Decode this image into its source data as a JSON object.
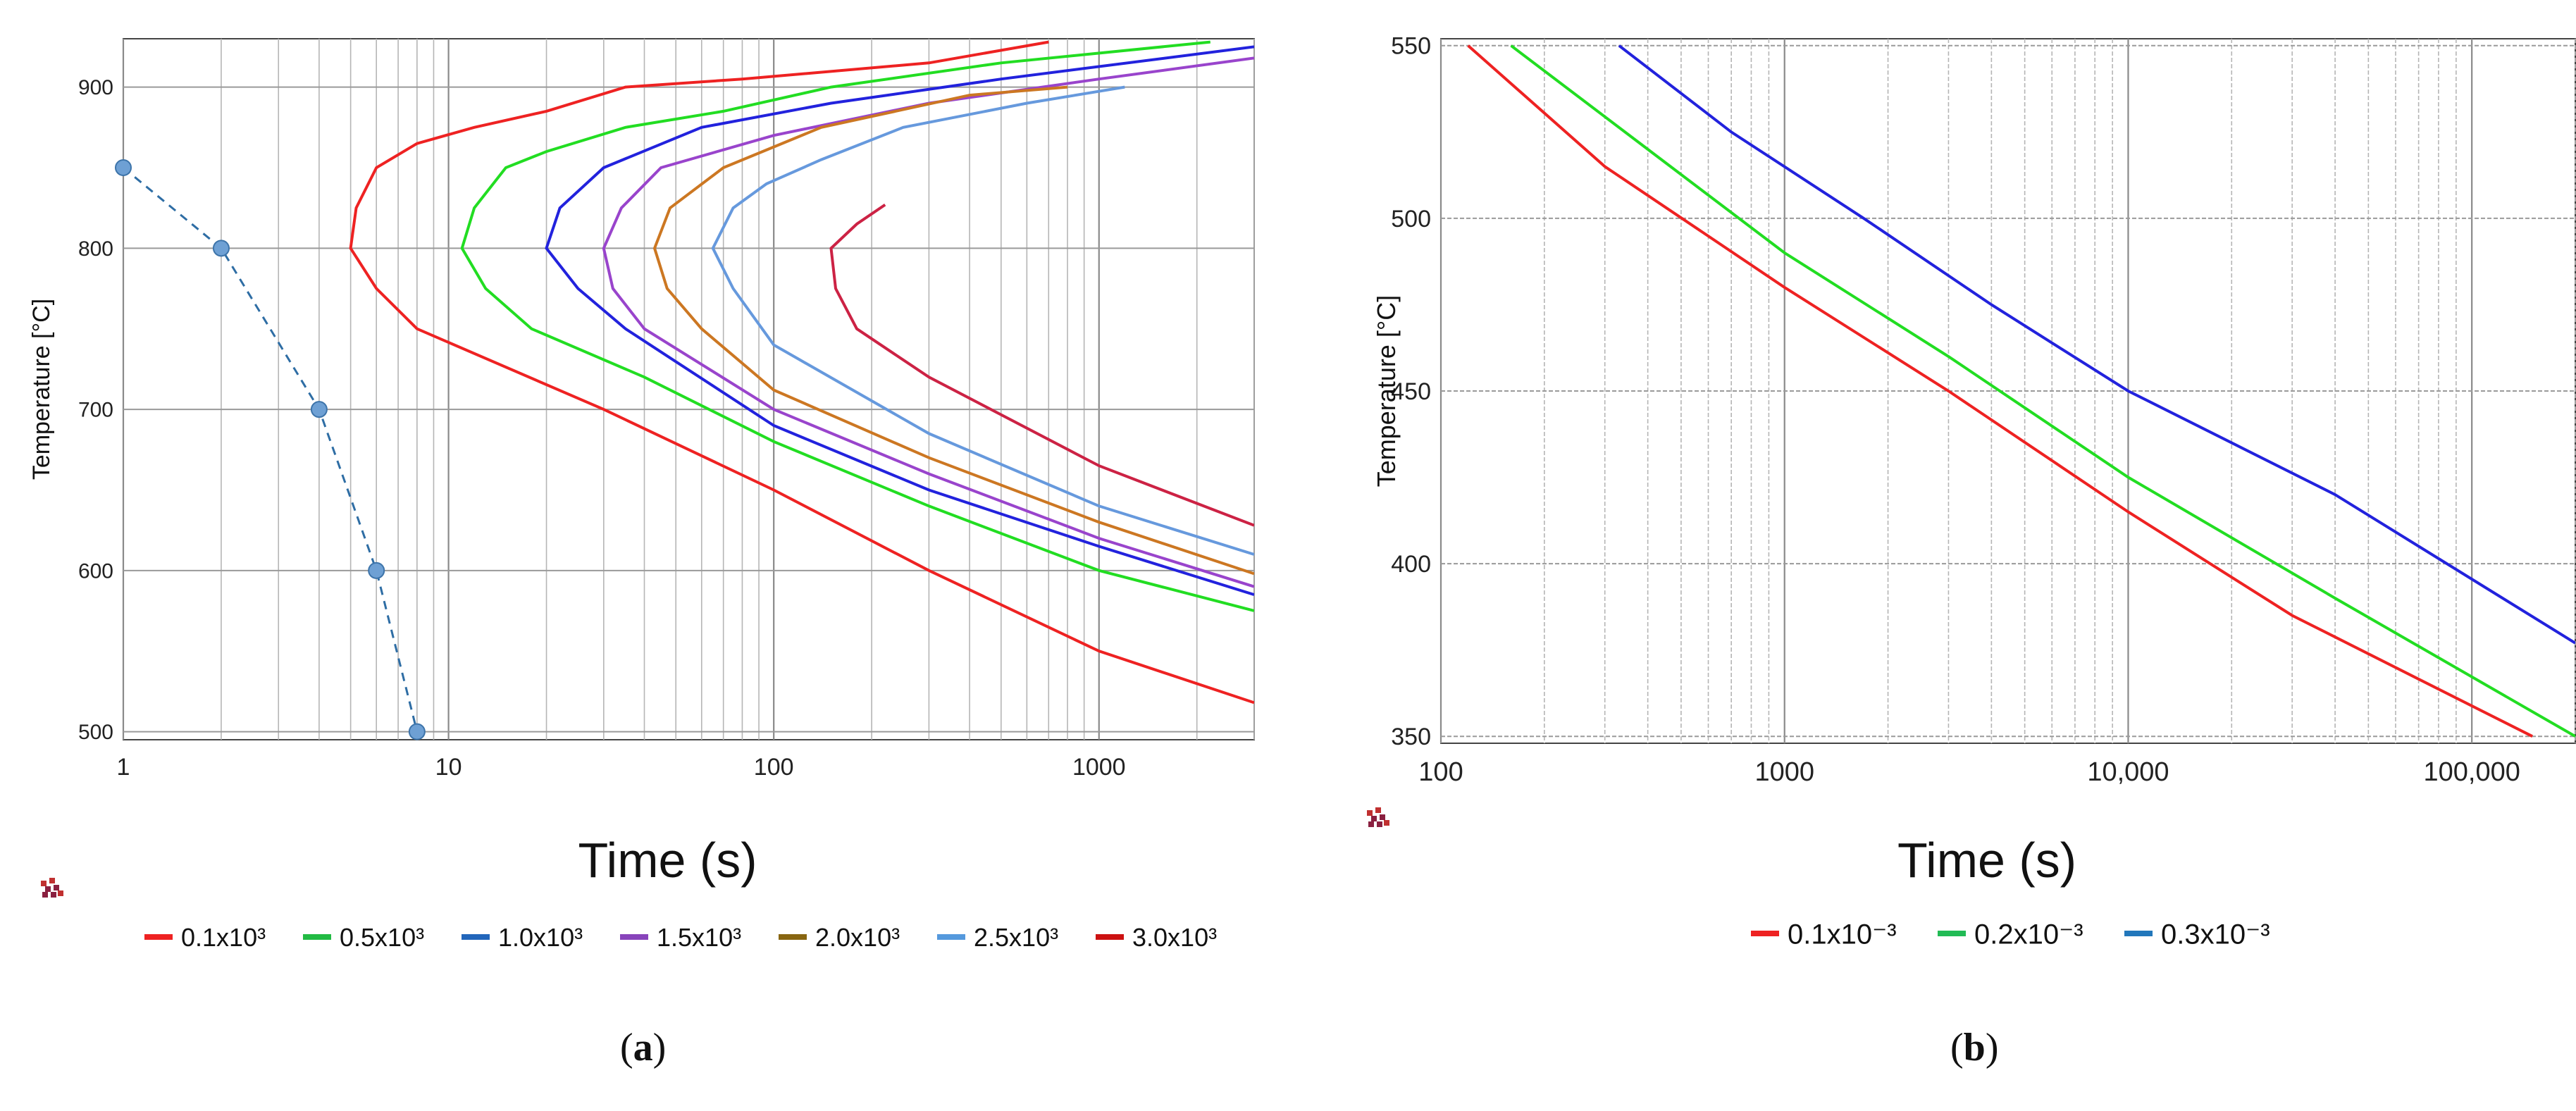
{
  "panels": {
    "a": {
      "label_open": "(",
      "label_letter": "a",
      "label_close": ")"
    },
    "b": {
      "label_open": "(",
      "label_letter": "b",
      "label_close": ")"
    }
  },
  "chart_data": [
    {
      "type": "line",
      "panel": "a",
      "xscale": "log",
      "xlim": [
        1,
        3000
      ],
      "ylim": [
        495,
        930
      ],
      "xlabel": "Time (s)",
      "ylabel": "Temperature [°C]",
      "xticks": [
        1,
        10,
        100,
        1000
      ],
      "xtick_labels": [
        "1",
        "10",
        "100",
        "1000"
      ],
      "yticks": [
        500,
        600,
        700,
        800,
        900
      ],
      "ytick_labels": [
        "500",
        "600",
        "700",
        "800",
        "900"
      ],
      "grid": true,
      "cooling_curve": {
        "style": "dashed",
        "color": "#2e6da4",
        "points": [
          [
            1,
            850
          ],
          [
            2,
            800
          ],
          [
            4,
            700
          ],
          [
            6,
            600
          ],
          [
            8,
            500
          ]
        ]
      },
      "series": [
        {
          "name": "0.1x10³",
          "color": "#ee2222",
          "points": [
            [
              3000,
              518
            ],
            [
              1000,
              550
            ],
            [
              300,
              600
            ],
            [
              100,
              650
            ],
            [
              30,
              700
            ],
            [
              8,
              750
            ],
            [
              6,
              775
            ],
            [
              5,
              800
            ],
            [
              5.2,
              825
            ],
            [
              6,
              850
            ],
            [
              8,
              865
            ],
            [
              12,
              875
            ],
            [
              20,
              885
            ],
            [
              35,
              900
            ],
            [
              80,
              905
            ],
            [
              300,
              915
            ],
            [
              700,
              928
            ]
          ]
        },
        {
          "name": "0.5x10³",
          "color": "#22dd22",
          "points": [
            [
              3000,
              575
            ],
            [
              1000,
              600
            ],
            [
              300,
              640
            ],
            [
              100,
              680
            ],
            [
              40,
              720
            ],
            [
              18,
              750
            ],
            [
              13,
              775
            ],
            [
              11,
              800
            ],
            [
              12,
              825
            ],
            [
              15,
              850
            ],
            [
              20,
              860
            ],
            [
              35,
              875
            ],
            [
              70,
              885
            ],
            [
              150,
              900
            ],
            [
              500,
              915
            ],
            [
              2200,
              928
            ]
          ]
        },
        {
          "name": "1.0x10³",
          "color": "#2222dd",
          "points": [
            [
              3000,
              585
            ],
            [
              1000,
              615
            ],
            [
              300,
              650
            ],
            [
              100,
              690
            ],
            [
              35,
              750
            ],
            [
              25,
              775
            ],
            [
              20,
              800
            ],
            [
              22,
              825
            ],
            [
              30,
              850
            ],
            [
              60,
              875
            ],
            [
              150,
              890
            ],
            [
              500,
              905
            ],
            [
              3000,
              925
            ]
          ]
        },
        {
          "name": "1.5x10³",
          "color": "#9944cc",
          "points": [
            [
              3000,
              590
            ],
            [
              1000,
              620
            ],
            [
              300,
              660
            ],
            [
              100,
              700
            ],
            [
              40,
              750
            ],
            [
              32,
              775
            ],
            [
              30,
              800
            ],
            [
              34,
              825
            ],
            [
              45,
              850
            ],
            [
              100,
              870
            ],
            [
              300,
              890
            ],
            [
              1000,
              905
            ],
            [
              3000,
              918
            ]
          ]
        },
        {
          "name": "2.0x10³",
          "color": "#cc7722",
          "points": [
            [
              3000,
              598
            ],
            [
              1000,
              630
            ],
            [
              300,
              670
            ],
            [
              100,
              712
            ],
            [
              60,
              750
            ],
            [
              47,
              775
            ],
            [
              43,
              800
            ],
            [
              48,
              825
            ],
            [
              70,
              850
            ],
            [
              140,
              875
            ],
            [
              400,
              895
            ],
            [
              800,
              900
            ]
          ]
        },
        {
          "name": "2.5x10³",
          "color": "#6699dd",
          "points": [
            [
              3000,
              610
            ],
            [
              1000,
              640
            ],
            [
              300,
              685
            ],
            [
              100,
              740
            ],
            [
              75,
              775
            ],
            [
              65,
              800
            ],
            [
              75,
              825
            ],
            [
              95,
              840
            ],
            [
              140,
              855
            ],
            [
              250,
              875
            ],
            [
              600,
              890
            ],
            [
              1200,
              900
            ]
          ]
        },
        {
          "name": "3.0x10³",
          "color": "#cc2244",
          "points": [
            [
              3000,
              628
            ],
            [
              1000,
              665
            ],
            [
              300,
              720
            ],
            [
              180,
              750
            ],
            [
              155,
              775
            ],
            [
              150,
              800
            ],
            [
              180,
              815
            ],
            [
              220,
              827
            ]
          ]
        }
      ]
    },
    {
      "type": "line",
      "panel": "b",
      "xscale": "log",
      "xlim": [
        100,
        200000
      ],
      "ylim": [
        348,
        552
      ],
      "xlabel": "Time (s)",
      "ylabel": "Temperature [°C]",
      "xticks": [
        100,
        1000,
        10000,
        100000
      ],
      "xtick_labels": [
        "100",
        "1000",
        "10,000",
        "100,000"
      ],
      "yticks": [
        350,
        400,
        450,
        500,
        550
      ],
      "ytick_labels": [
        "350",
        "400",
        "450",
        "500",
        "550"
      ],
      "grid": true,
      "series": [
        {
          "name": "0.1x10⁻³",
          "color": "#ee2222",
          "points": [
            [
              120,
              550
            ],
            [
              300,
              515
            ],
            [
              1000,
              480
            ],
            [
              3000,
              450
            ],
            [
              10000,
              415
            ],
            [
              30000,
              385
            ],
            [
              150000,
              350
            ]
          ]
        },
        {
          "name": "0.2x10⁻³",
          "color": "#22dd22",
          "points": [
            [
              160,
              550
            ],
            [
              400,
              520
            ],
            [
              1000,
              490
            ],
            [
              3000,
              460
            ],
            [
              10000,
              425
            ],
            [
              40000,
              390
            ],
            [
              200000,
              350
            ]
          ]
        },
        {
          "name": "0.3x10⁻³",
          "color": "#2222dd",
          "points": [
            [
              330,
              550
            ],
            [
              700,
              525
            ],
            [
              1700,
              500
            ],
            [
              4000,
              475
            ],
            [
              10000,
              450
            ],
            [
              40000,
              420
            ],
            [
              200000,
              377
            ]
          ]
        }
      ]
    }
  ],
  "legends": {
    "a": [
      {
        "label": "0.1x10³",
        "color": "#ee2222"
      },
      {
        "label": "0.5x10³",
        "color": "#22bb44"
      },
      {
        "label": "1.0x10³",
        "color": "#2266bb"
      },
      {
        "label": "1.5x10³",
        "color": "#8844bb"
      },
      {
        "label": "2.0x10³",
        "color": "#886611"
      },
      {
        "label": "2.5x10³",
        "color": "#5599dd"
      },
      {
        "label": "3.0x10³",
        "color": "#cc1111"
      }
    ],
    "b": [
      {
        "label": "0.1x10⁻³",
        "color": "#ee2222"
      },
      {
        "label": "0.2x10⁻³",
        "color": "#22bb55"
      },
      {
        "label": "0.3x10⁻³",
        "color": "#2277bb"
      }
    ]
  }
}
